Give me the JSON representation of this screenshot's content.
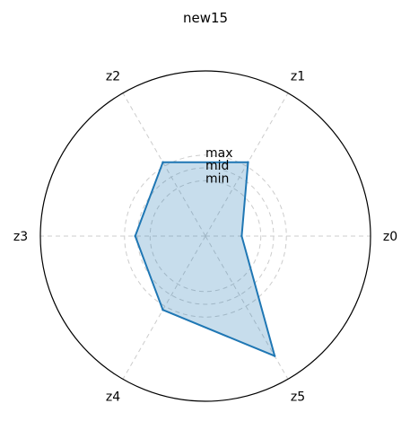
{
  "chart_data": {
    "type": "radar",
    "title": "new15",
    "categories": [
      "z0",
      "z1",
      "z2",
      "z3",
      "z4",
      "z5"
    ],
    "ring_labels": [
      "min",
      "mid",
      "max"
    ],
    "ring_values": [
      0.52,
      0.64,
      0.76
    ],
    "rmax": 1.55,
    "series": [
      {
        "values": [
          0.34,
          0.8,
          0.8,
          0.66,
          0.8,
          1.3
        ]
      }
    ],
    "colors": {
      "line": "#1f77b4",
      "fill": "#1f77b4",
      "grid": "#cccccc",
      "outer": "#000000"
    },
    "grid": true
  }
}
